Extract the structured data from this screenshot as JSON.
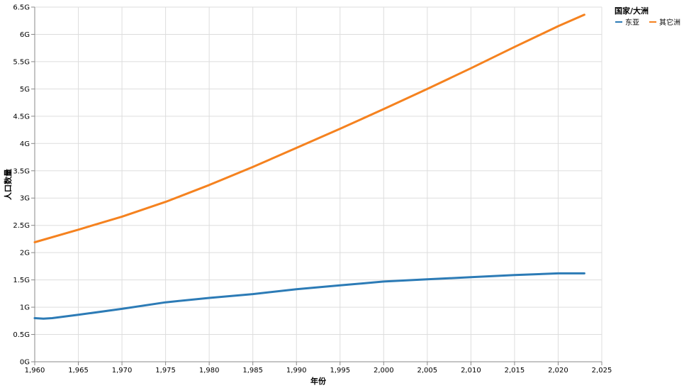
{
  "chart_data": {
    "type": "line",
    "title": "",
    "xlabel": "年份",
    "ylabel": "人口数量",
    "xlim": [
      1960,
      2025
    ],
    "ylim": [
      0,
      6.5
    ],
    "x_ticks": [
      1960,
      1965,
      1970,
      1975,
      1980,
      1985,
      1990,
      1995,
      2000,
      2005,
      2010,
      2015,
      2020,
      2025
    ],
    "x_tick_labels": [
      "1,960",
      "1,965",
      "1,970",
      "1,975",
      "1,980",
      "1,985",
      "1,990",
      "1,995",
      "2,000",
      "2,005",
      "2,010",
      "2,015",
      "2,020",
      "2,025"
    ],
    "y_ticks": [
      0,
      0.5,
      1,
      1.5,
      2,
      2.5,
      3,
      3.5,
      4,
      4.5,
      5,
      5.5,
      6,
      6.5
    ],
    "y_tick_labels": [
      "0G",
      "0.5G",
      "1G",
      "1.5G",
      "2G",
      "2.5G",
      "3G",
      "3.5G",
      "4G",
      "4.5G",
      "5G",
      "5.5G",
      "6G",
      "6.5G"
    ],
    "grid": true,
    "legend": {
      "title": "国家/大洲",
      "placement": "top-right"
    },
    "series": [
      {
        "name": "东亚",
        "color": "#2c7bb6",
        "x": [
          1960,
          1961,
          1962,
          1965,
          1970,
          1975,
          1980,
          1985,
          1990,
          1995,
          2000,
          2005,
          2010,
          2015,
          2020,
          2022,
          2023
        ],
        "values": [
          0.8,
          0.79,
          0.8,
          0.86,
          0.97,
          1.09,
          1.17,
          1.24,
          1.33,
          1.4,
          1.47,
          1.51,
          1.55,
          1.59,
          1.62,
          1.62,
          1.62
        ]
      },
      {
        "name": "其它洲",
        "color": "#f5821f",
        "x": [
          1960,
          1965,
          1970,
          1975,
          1980,
          1985,
          1990,
          1995,
          2000,
          2005,
          2010,
          2015,
          2020,
          2023
        ],
        "values": [
          2.19,
          2.42,
          2.66,
          2.93,
          3.24,
          3.57,
          3.92,
          4.27,
          4.63,
          5.0,
          5.38,
          5.77,
          6.15,
          6.36
        ]
      }
    ]
  }
}
